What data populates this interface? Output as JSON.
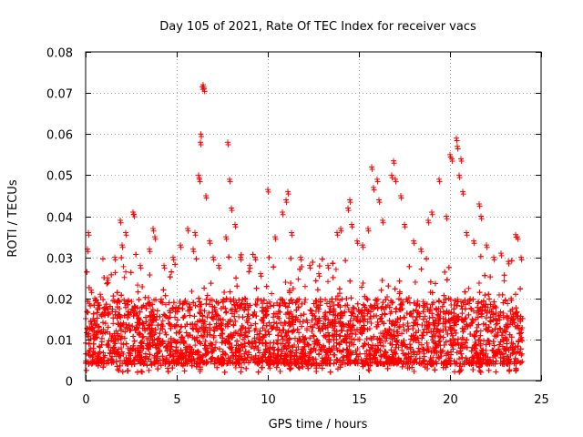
{
  "chart_data": {
    "type": "scatter",
    "title": "Day 105 of 2021, Rate Of TEC Index for receiver vacs",
    "xlabel": "GPS time / hours",
    "ylabel": "ROTI / TECUs",
    "xlim": [
      0,
      25
    ],
    "ylim": [
      0,
      0.08
    ],
    "x_ticks": [
      0,
      5,
      10,
      15,
      20,
      25
    ],
    "x_tick_labels": [
      "0",
      "5",
      "10",
      "15",
      "20",
      "25"
    ],
    "y_ticks": [
      0,
      0.01,
      0.02,
      0.03,
      0.04,
      0.05,
      0.06,
      0.07,
      0.08
    ],
    "y_tick_labels": [
      "0",
      "0.01",
      "0.02",
      "0.03",
      "0.04",
      "0.05",
      "0.06",
      "0.07",
      "0.08"
    ],
    "grid": true,
    "marker": "plus",
    "color": "#ff0000",
    "series": [
      {
        "name": "ROTI",
        "points": [
          [
            0.1,
            0.032
          ],
          [
            0.15,
            0.036
          ],
          [
            0.3,
            0.022
          ],
          [
            0.5,
            0.02
          ],
          [
            0.8,
            0.021
          ],
          [
            1.2,
            0.025
          ],
          [
            1.6,
            0.03
          ],
          [
            1.9,
            0.039
          ],
          [
            2.0,
            0.033
          ],
          [
            2.2,
            0.036
          ],
          [
            2.6,
            0.041
          ],
          [
            2.65,
            0.0405
          ],
          [
            3.0,
            0.028
          ],
          [
            3.5,
            0.032
          ],
          [
            3.7,
            0.037
          ],
          [
            3.8,
            0.035
          ],
          [
            4.3,
            0.028
          ],
          [
            4.8,
            0.03
          ],
          [
            5.2,
            0.033
          ],
          [
            5.6,
            0.037
          ],
          [
            5.9,
            0.032
          ],
          [
            6.0,
            0.036
          ],
          [
            6.2,
            0.05
          ],
          [
            6.25,
            0.049
          ],
          [
            6.3,
            0.058
          ],
          [
            6.32,
            0.06
          ],
          [
            6.4,
            0.0715
          ],
          [
            6.45,
            0.072
          ],
          [
            6.5,
            0.071
          ],
          [
            6.6,
            0.045
          ],
          [
            6.8,
            0.034
          ],
          [
            7.0,
            0.03
          ],
          [
            7.3,
            0.028
          ],
          [
            7.7,
            0.035
          ],
          [
            7.8,
            0.058
          ],
          [
            7.9,
            0.049
          ],
          [
            8.0,
            0.042
          ],
          [
            8.2,
            0.038
          ],
          [
            8.5,
            0.03
          ],
          [
            9.0,
            0.028
          ],
          [
            9.3,
            0.03
          ],
          [
            9.6,
            0.026
          ],
          [
            10.0,
            0.0465
          ],
          [
            10.4,
            0.035
          ],
          [
            10.8,
            0.041
          ],
          [
            11.0,
            0.044
          ],
          [
            11.1,
            0.046
          ],
          [
            11.3,
            0.036
          ],
          [
            11.8,
            0.03
          ],
          [
            12.3,
            0.028
          ],
          [
            12.8,
            0.026
          ],
          [
            13.3,
            0.028
          ],
          [
            13.8,
            0.036
          ],
          [
            14.0,
            0.037
          ],
          [
            14.4,
            0.042
          ],
          [
            14.5,
            0.044
          ],
          [
            14.6,
            0.038
          ],
          [
            14.9,
            0.034
          ],
          [
            15.2,
            0.033
          ],
          [
            15.5,
            0.037
          ],
          [
            15.7,
            0.052
          ],
          [
            15.8,
            0.047
          ],
          [
            16.0,
            0.049
          ],
          [
            16.1,
            0.044
          ],
          [
            16.3,
            0.039
          ],
          [
            16.8,
            0.05
          ],
          [
            16.9,
            0.0535
          ],
          [
            17.0,
            0.049
          ],
          [
            17.3,
            0.045
          ],
          [
            17.5,
            0.038
          ],
          [
            18.0,
            0.034
          ],
          [
            18.4,
            0.032
          ],
          [
            18.8,
            0.039
          ],
          [
            19.0,
            0.041
          ],
          [
            19.4,
            0.049
          ],
          [
            19.8,
            0.04
          ],
          [
            20.0,
            0.055
          ],
          [
            20.1,
            0.054
          ],
          [
            20.35,
            0.059
          ],
          [
            20.4,
            0.057
          ],
          [
            20.5,
            0.05
          ],
          [
            20.6,
            0.054
          ],
          [
            20.7,
            0.046
          ],
          [
            20.9,
            0.036
          ],
          [
            21.3,
            0.034
          ],
          [
            21.6,
            0.043
          ],
          [
            21.7,
            0.04
          ],
          [
            22.0,
            0.033
          ],
          [
            22.4,
            0.03
          ],
          [
            22.8,
            0.031
          ],
          [
            23.2,
            0.029
          ],
          [
            23.6,
            0.0355
          ],
          [
            23.7,
            0.035
          ],
          [
            23.9,
            0.03
          ]
        ],
        "bulk_band": {
          "x_range": [
            0,
            24
          ],
          "typical_min": 0.004,
          "typical_max": 0.02,
          "absolute_min": 0.002
        }
      }
    ]
  }
}
